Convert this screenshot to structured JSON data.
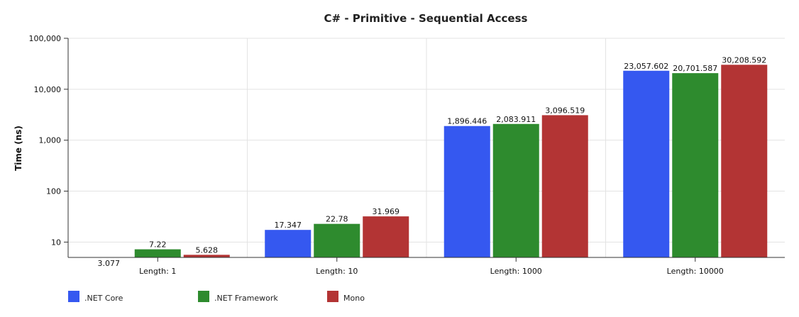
{
  "chart_data": {
    "type": "bar",
    "title": "C# - Primitive -  Sequential Access",
    "xlabel": "",
    "ylabel": "Time (ns)",
    "yscale": "log",
    "ylim": [
      5,
      100000
    ],
    "yticks": [
      {
        "value": 10,
        "label": "10"
      },
      {
        "value": 100,
        "label": "100"
      },
      {
        "value": 1000,
        "label": "1,000"
      },
      {
        "value": 10000,
        "label": "10,000"
      },
      {
        "value": 100000,
        "label": "100,000"
      }
    ],
    "grid": true,
    "legend_position": "bottom-left",
    "categories": [
      "Length: 1",
      "Length: 10",
      "Length: 1000",
      "Length: 10000"
    ],
    "series": [
      {
        "name": ".NET Core",
        "color": "#3558f0",
        "values": [
          3.077,
          17.347,
          1896.446,
          23057.602
        ],
        "labels": [
          "3.077",
          "17.347",
          "1,896.446",
          "23,057.602"
        ]
      },
      {
        "name": ".NET Framework",
        "color": "#2e8b2e",
        "values": [
          7.22,
          22.78,
          2083.911,
          20701.587
        ],
        "labels": [
          "7.22",
          "22.78",
          "2,083.911",
          "20,701.587"
        ]
      },
      {
        "name": "Mono",
        "color": "#b33434",
        "values": [
          5.628,
          31.969,
          3096.519,
          30208.592
        ],
        "labels": [
          "5.628",
          "31.969",
          "3,096.519",
          "30,208.592"
        ]
      }
    ]
  }
}
